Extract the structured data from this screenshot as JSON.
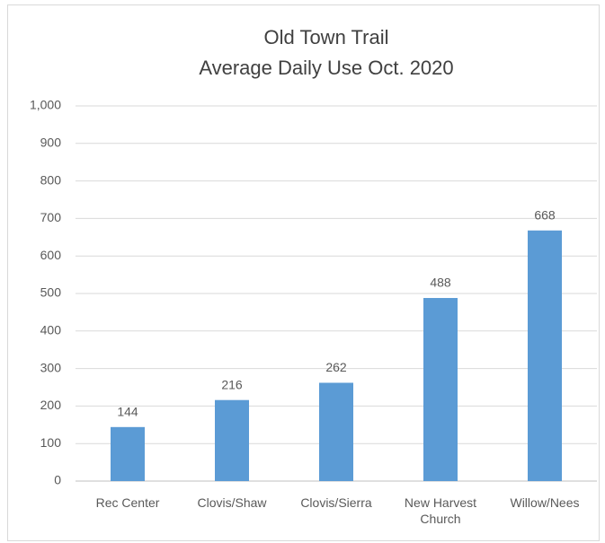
{
  "chart_data": {
    "type": "bar",
    "title": "Old Town Trail",
    "subtitle": "Average Daily Use Oct. 2020",
    "categories": [
      "Rec Center",
      "Clovis/Shaw",
      "Clovis/Sierra",
      "New Harvest Church",
      "Willow/Nees"
    ],
    "values": [
      144,
      216,
      262,
      488,
      668
    ],
    "color": "#5b9bd5",
    "ylim": [
      0,
      1000
    ],
    "yticks": [
      0,
      100,
      200,
      300,
      400,
      500,
      600,
      700,
      800,
      900,
      {
        "value": 1000,
        "label": "1,000"
      }
    ],
    "grid": true
  }
}
